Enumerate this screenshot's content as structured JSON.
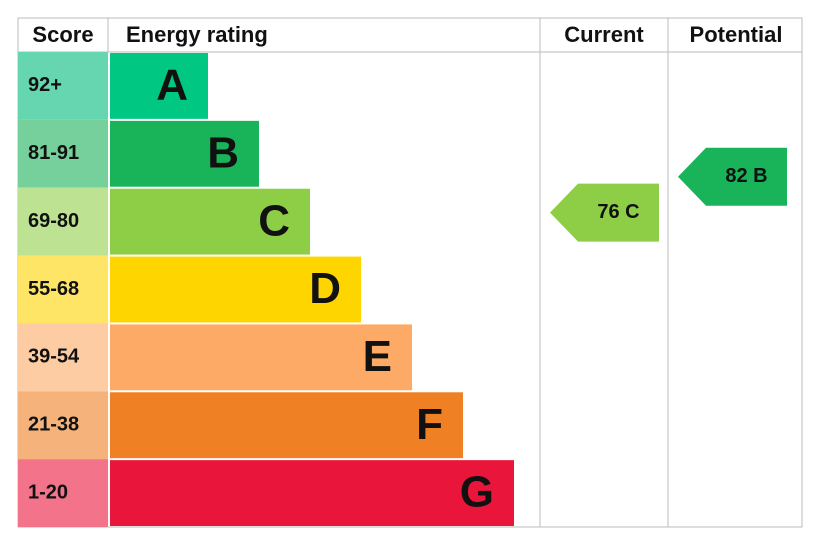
{
  "header": {
    "score": "Score",
    "rating": "Energy rating",
    "current": "Current",
    "potential": "Potential"
  },
  "bands": [
    {
      "score": "92+",
      "letter": "A",
      "color": "#00c781",
      "light": "#66d6b0"
    },
    {
      "score": "81-91",
      "letter": "B",
      "color": "#19b459",
      "light": "#75d09b"
    },
    {
      "score": "69-80",
      "letter": "C",
      "color": "#8dce46",
      "light": "#bde292"
    },
    {
      "score": "55-68",
      "letter": "D",
      "color": "#ffd500",
      "light": "#ffe566"
    },
    {
      "score": "39-54",
      "letter": "E",
      "color": "#fcaa65",
      "light": "#fdcca3"
    },
    {
      "score": "21-38",
      "letter": "F",
      "color": "#ef8023",
      "light": "#f5b37b"
    },
    {
      "score": "1-20",
      "letter": "G",
      "color": "#e9153b",
      "light": "#f2738a"
    }
  ],
  "current": {
    "label": "76 C",
    "color": "#8dce46"
  },
  "potential": {
    "label": "82 B",
    "color": "#19b459"
  }
}
